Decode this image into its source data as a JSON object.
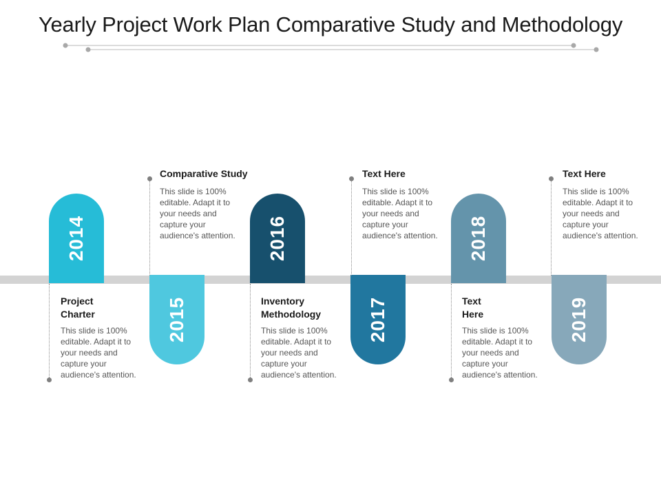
{
  "title": "Yearly Project Work Plan Comparative Study and Methodology",
  "colors": {
    "y2014": "#26bcd7",
    "y2015": "#4fc8df",
    "y2016": "#17506d",
    "y2017": "#21779f",
    "y2018": "#6494ab",
    "y2019": "#87a8ba",
    "band": "#d3d3d3"
  },
  "items": [
    {
      "year": "2014",
      "heading_lines": [
        "Project",
        "Charter"
      ],
      "body_lines": [
        "This slide is 100%",
        "editable. Adapt it to",
        "your needs and",
        "capture your",
        "audience's attention."
      ]
    },
    {
      "year": "2015",
      "heading_lines": [
        "Comparative Study"
      ],
      "body_lines": [
        "This slide is 100%",
        "editable. Adapt it to",
        "your needs and",
        "capture your",
        "audience's attention."
      ]
    },
    {
      "year": "2016",
      "heading_lines": [
        "Inventory",
        "Methodology"
      ],
      "body_lines": [
        "This slide is 100%",
        "editable. Adapt it to",
        "your needs and",
        "capture your",
        "audience's attention."
      ]
    },
    {
      "year": "2017",
      "heading_lines": [
        "Text Here"
      ],
      "body_lines": [
        "This slide is 100%",
        "editable. Adapt it to",
        "your needs and",
        "capture your",
        "audience's attention."
      ]
    },
    {
      "year": "2018",
      "heading_lines": [
        "Text",
        "Here"
      ],
      "body_lines": [
        "This slide is 100%",
        "editable. Adapt it to",
        "your needs and",
        "capture your",
        "audience's attention."
      ]
    },
    {
      "year": "2019",
      "heading_lines": [
        "Text Here"
      ],
      "body_lines": [
        "This slide is 100%",
        "editable. Adapt it to",
        "your needs and",
        "capture your",
        "audience's attention."
      ]
    }
  ]
}
